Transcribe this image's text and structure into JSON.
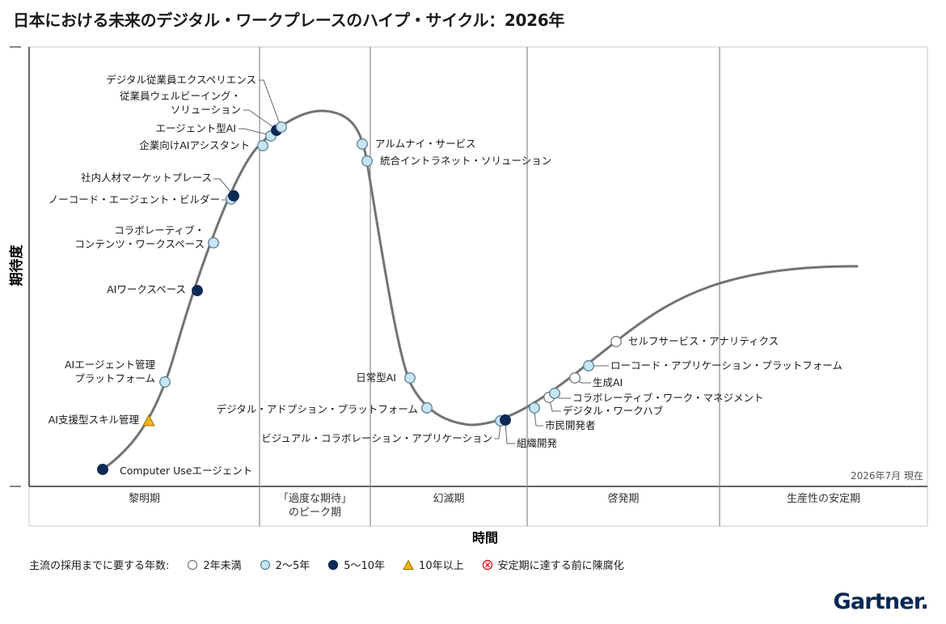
{
  "title": "日本における未来のデジタル・ワークプレースのハイプ・サイクル：2026年",
  "brand": "Gartner",
  "colors": {
    "curve": "#707473",
    "under2": "#c6e6f5",
    "under5": "#0b2a55",
    "over10": "#f2b21b",
    "obsolete": "#d31f26",
    "axis": "#333333",
    "phase_line": "#8c8c8c"
  },
  "chart_data": {
    "type": "hype_cycle",
    "ylabel": "期待度",
    "xlabel": "時間",
    "as_of": "2026年7月 現在",
    "phases": [
      "黎明期",
      "「過度な期待」\nのピーク期",
      "幻滅期",
      "啓発期",
      "生産性の安定期"
    ],
    "legend": {
      "title": "主流の採用までに要する年数:",
      "items": [
        {
          "key": "under2",
          "label": "2年未満",
          "marker": "circle-white"
        },
        {
          "key": "2to5",
          "label": "2～5年",
          "marker": "circle-lightblue"
        },
        {
          "key": "5to10",
          "label": "5～10年",
          "marker": "circle-navy"
        },
        {
          "key": "over10",
          "label": "10年以上",
          "marker": "triangle-amber"
        },
        {
          "key": "obsolete",
          "label": "安定期に達する前に陳腐化",
          "marker": "x-circle"
        }
      ]
    },
    "technologies": [
      {
        "name": "Computer Useエージェント",
        "phase": "黎明期",
        "category": "5to10"
      },
      {
        "name": "AI支援型スキル管理",
        "phase": "黎明期",
        "category": "over10"
      },
      {
        "name": "AIエージェント管理\nプラットフォーム",
        "phase": "黎明期",
        "category": "2to5"
      },
      {
        "name": "AIワークスペース",
        "phase": "黎明期",
        "category": "5to10"
      },
      {
        "name": "コラボレーティブ・\nコンテンツ・ワークスペース",
        "phase": "黎明期",
        "category": "2to5"
      },
      {
        "name": "ノーコード・エージェント・ビルダー",
        "phase": "黎明期",
        "category": "2to5"
      },
      {
        "name": "社内人材マーケットプレース",
        "phase": "黎明期",
        "category": "5to10"
      },
      {
        "name": "企業向けAIアシスタント",
        "phase": "黎明期",
        "category": "2to5"
      },
      {
        "name": "エージェント型AI",
        "phase": "「過度な期待」のピーク期",
        "category": "2to5"
      },
      {
        "name": "従業員ウェルビーイング・\nソリューション",
        "phase": "「過度な期待」のピーク期",
        "category": "5to10"
      },
      {
        "name": "デジタル従業員エクスペリエンス",
        "phase": "「過度な期待」のピーク期",
        "category": "2to5"
      },
      {
        "name": "アルムナイ・サービス",
        "phase": "幻滅期",
        "category": "2to5"
      },
      {
        "name": "統合イントラネット・ソリューション",
        "phase": "幻滅期",
        "category": "2to5"
      },
      {
        "name": "日常型AI",
        "phase": "幻滅期",
        "category": "2to5"
      },
      {
        "name": "デジタル・アドプション・プラットフォーム",
        "phase": "幻滅期",
        "category": "2to5"
      },
      {
        "name": "ビジュアル・コラボレーション・アプリケーション",
        "phase": "幻滅期",
        "category": "2to5"
      },
      {
        "name": "組織開発",
        "phase": "幻滅期",
        "category": "5to10"
      },
      {
        "name": "市民開発者",
        "phase": "啓発期",
        "category": "2to5"
      },
      {
        "name": "デジタル・ワークハブ",
        "phase": "啓発期",
        "category": "under2"
      },
      {
        "name": "コラボレーティブ・ワーク・マネジメント",
        "phase": "啓発期",
        "category": "2to5"
      },
      {
        "name": "生成AI",
        "phase": "啓発期",
        "category": "under2"
      },
      {
        "name": "ローコード・アプリケーション・プラットフォーム",
        "phase": "啓発期",
        "category": "2to5"
      },
      {
        "name": "セルフサービス・アナリティクス",
        "phase": "啓発期",
        "category": "under2"
      }
    ]
  }
}
